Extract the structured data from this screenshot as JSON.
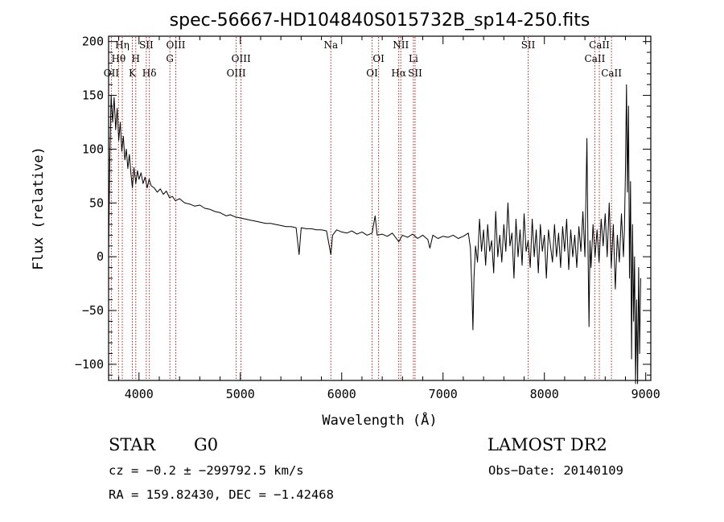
{
  "chart_data": {
    "type": "line",
    "title": "spec-56667-HD104840S015732B_sp14-250.fits",
    "xlabel": "Wavelength (Å)",
    "ylabel": "Flux (relative)",
    "xlim": [
      3700,
      9050
    ],
    "ylim": [
      -115,
      205
    ],
    "x_ticks": [
      {
        "value": 4000,
        "label": "4000"
      },
      {
        "value": 5000,
        "label": "5000"
      },
      {
        "value": 6000,
        "label": "6000"
      },
      {
        "value": 7000,
        "label": "7000"
      },
      {
        "value": 8000,
        "label": "8000"
      },
      {
        "value": 9000,
        "label": "9000"
      }
    ],
    "y_ticks": [
      {
        "value": 200,
        "label": "200"
      },
      {
        "value": 150,
        "label": "150"
      },
      {
        "value": 100,
        "label": "100"
      },
      {
        "value": 50,
        "label": "50"
      },
      {
        "value": 0,
        "label": "0"
      },
      {
        "value": -50,
        "label": "−50"
      },
      {
        "value": -100,
        "label": "−100"
      }
    ],
    "line_color": "#000000",
    "marker_color": "#b22222",
    "spectral_lines": [
      {
        "label": "Hη",
        "wavelength": 3835,
        "row": 0
      },
      {
        "label": "Hθ",
        "wavelength": 3798,
        "row": 1
      },
      {
        "label": "OII",
        "wavelength": 3727,
        "row": 2
      },
      {
        "label": "H",
        "wavelength": 3968,
        "row": 1
      },
      {
        "label": "K",
        "wavelength": 3934,
        "row": 2
      },
      {
        "label": "SII",
        "wavelength": 4072,
        "row": 0
      },
      {
        "label": "Hδ",
        "wavelength": 4102,
        "row": 2
      },
      {
        "label": "OIII",
        "wavelength": 4363,
        "row": 0
      },
      {
        "label": "G",
        "wavelength": 4305,
        "row": 1
      },
      {
        "label": "OIII",
        "wavelength": 5007,
        "row": 1
      },
      {
        "label": "OIII",
        "wavelength": 4959,
        "row": 2
      },
      {
        "label": "Na",
        "wavelength": 5893,
        "row": 0
      },
      {
        "label": "OI",
        "wavelength": 6364,
        "row": 1
      },
      {
        "label": "OI",
        "wavelength": 6300,
        "row": 2
      },
      {
        "label": "NII",
        "wavelength": 6583,
        "row": 0
      },
      {
        "label": "Li",
        "wavelength": 6708,
        "row": 1
      },
      {
        "label": "Hα",
        "wavelength": 6563,
        "row": 2
      },
      {
        "label": "SII",
        "wavelength": 6724,
        "row": 2
      },
      {
        "label": "SII",
        "wavelength": 7840,
        "row": 0
      },
      {
        "label": "CaII",
        "wavelength": 8542,
        "row": 0
      },
      {
        "label": "CaII",
        "wavelength": 8498,
        "row": 1
      },
      {
        "label": "CaII",
        "wavelength": 8662,
        "row": 2
      }
    ],
    "series": [
      {
        "name": "flux",
        "points": [
          [
            3700,
            5
          ],
          [
            3712,
            90
          ],
          [
            3725,
            150
          ],
          [
            3740,
            125
          ],
          [
            3755,
            148
          ],
          [
            3770,
            118
          ],
          [
            3785,
            138
          ],
          [
            3800,
            108
          ],
          [
            3815,
            125
          ],
          [
            3830,
            98
          ],
          [
            3845,
            112
          ],
          [
            3860,
            90
          ],
          [
            3875,
            100
          ],
          [
            3890,
            82
          ],
          [
            3905,
            95
          ],
          [
            3920,
            78
          ],
          [
            3935,
            64
          ],
          [
            3950,
            83
          ],
          [
            3968,
            68
          ],
          [
            3985,
            80
          ],
          [
            4000,
            72
          ],
          [
            4020,
            78
          ],
          [
            4040,
            68
          ],
          [
            4060,
            74
          ],
          [
            4080,
            64
          ],
          [
            4100,
            72
          ],
          [
            4120,
            66
          ],
          [
            4150,
            64
          ],
          [
            4180,
            60
          ],
          [
            4210,
            63
          ],
          [
            4240,
            58
          ],
          [
            4270,
            61
          ],
          [
            4300,
            55
          ],
          [
            4330,
            56
          ],
          [
            4360,
            52
          ],
          [
            4400,
            54
          ],
          [
            4450,
            50
          ],
          [
            4500,
            49
          ],
          [
            4550,
            47
          ],
          [
            4600,
            48
          ],
          [
            4650,
            45
          ],
          [
            4700,
            44
          ],
          [
            4750,
            42
          ],
          [
            4800,
            41
          ],
          [
            4861,
            38
          ],
          [
            4900,
            39
          ],
          [
            4950,
            37
          ],
          [
            5000,
            36
          ],
          [
            5050,
            35
          ],
          [
            5100,
            34
          ],
          [
            5150,
            33
          ],
          [
            5200,
            32
          ],
          [
            5250,
            31
          ],
          [
            5300,
            31
          ],
          [
            5350,
            30
          ],
          [
            5400,
            29
          ],
          [
            5450,
            28
          ],
          [
            5500,
            28
          ],
          [
            5550,
            27
          ],
          [
            5580,
            2
          ],
          [
            5600,
            27
          ],
          [
            5650,
            26
          ],
          [
            5700,
            26
          ],
          [
            5750,
            25
          ],
          [
            5800,
            25
          ],
          [
            5850,
            24
          ],
          [
            5893,
            2
          ],
          [
            5910,
            20
          ],
          [
            5950,
            25
          ],
          [
            6000,
            23
          ],
          [
            6050,
            22
          ],
          [
            6100,
            24
          ],
          [
            6150,
            21
          ],
          [
            6200,
            23
          ],
          [
            6250,
            20
          ],
          [
            6300,
            22
          ],
          [
            6330,
            38
          ],
          [
            6350,
            20
          ],
          [
            6400,
            21
          ],
          [
            6450,
            19
          ],
          [
            6500,
            22
          ],
          [
            6563,
            14
          ],
          [
            6600,
            20
          ],
          [
            6650,
            18
          ],
          [
            6700,
            21
          ],
          [
            6750,
            17
          ],
          [
            6800,
            20
          ],
          [
            6850,
            16
          ],
          [
            6870,
            8
          ],
          [
            6900,
            20
          ],
          [
            6950,
            17
          ],
          [
            7000,
            19
          ],
          [
            7050,
            18
          ],
          [
            7100,
            20
          ],
          [
            7150,
            17
          ],
          [
            7200,
            19
          ],
          [
            7250,
            22
          ],
          [
            7270,
            8
          ],
          [
            7285,
            -30
          ],
          [
            7295,
            -68
          ],
          [
            7305,
            -20
          ],
          [
            7320,
            10
          ],
          [
            7340,
            -5
          ],
          [
            7360,
            35
          ],
          [
            7380,
            5
          ],
          [
            7400,
            25
          ],
          [
            7420,
            -8
          ],
          [
            7440,
            30
          ],
          [
            7460,
            5
          ],
          [
            7480,
            15
          ],
          [
            7500,
            -15
          ],
          [
            7520,
            42
          ],
          [
            7540,
            0
          ],
          [
            7560,
            20
          ],
          [
            7580,
            -5
          ],
          [
            7600,
            30
          ],
          [
            7620,
            5
          ],
          [
            7640,
            50
          ],
          [
            7660,
            10
          ],
          [
            7680,
            22
          ],
          [
            7700,
            -20
          ],
          [
            7720,
            35
          ],
          [
            7740,
            0
          ],
          [
            7760,
            25
          ],
          [
            7780,
            -8
          ],
          [
            7800,
            40
          ],
          [
            7820,
            5
          ],
          [
            7840,
            15
          ],
          [
            7860,
            -10
          ],
          [
            7880,
            35
          ],
          [
            7900,
            0
          ],
          [
            7920,
            25
          ],
          [
            7940,
            -15
          ],
          [
            7960,
            30
          ],
          [
            7980,
            5
          ],
          [
            8000,
            20
          ],
          [
            8020,
            -20
          ],
          [
            8040,
            25
          ],
          [
            8060,
            10
          ],
          [
            8080,
            -5
          ],
          [
            8100,
            30
          ],
          [
            8120,
            0
          ],
          [
            8140,
            22
          ],
          [
            8160,
            -10
          ],
          [
            8180,
            28
          ],
          [
            8200,
            5
          ],
          [
            8220,
            35
          ],
          [
            8240,
            -12
          ],
          [
            8260,
            25
          ],
          [
            8280,
            0
          ],
          [
            8300,
            20
          ],
          [
            8320,
            -10
          ],
          [
            8340,
            28
          ],
          [
            8360,
            5
          ],
          [
            8380,
            42
          ],
          [
            8400,
            0
          ],
          [
            8420,
            110
          ],
          [
            8430,
            10
          ],
          [
            8440,
            -65
          ],
          [
            8450,
            15
          ],
          [
            8460,
            -10
          ],
          [
            8480,
            30
          ],
          [
            8500,
            0
          ],
          [
            8520,
            25
          ],
          [
            8540,
            -5
          ],
          [
            8560,
            35
          ],
          [
            8580,
            10
          ],
          [
            8600,
            40
          ],
          [
            8620,
            0
          ],
          [
            8640,
            50
          ],
          [
            8660,
            -10
          ],
          [
            8680,
            30
          ],
          [
            8700,
            -30
          ],
          [
            8720,
            20
          ],
          [
            8740,
            -5
          ],
          [
            8760,
            40
          ],
          [
            8780,
            0
          ],
          [
            8790,
            25
          ],
          [
            8800,
            80
          ],
          [
            8810,
            160
          ],
          [
            8820,
            60
          ],
          [
            8830,
            140
          ],
          [
            8840,
            -20
          ],
          [
            8850,
            70
          ],
          [
            8860,
            -95
          ],
          [
            8870,
            30
          ],
          [
            8880,
            -60
          ],
          [
            8890,
            0
          ],
          [
            8900,
            -118
          ],
          [
            8910,
            -40
          ],
          [
            8920,
            -118
          ],
          [
            8930,
            -10
          ],
          [
            8940,
            -90
          ],
          [
            8950,
            -20
          ]
        ]
      }
    ]
  },
  "info": {
    "object_class": "STAR",
    "subclass": "G0",
    "survey": "LAMOST DR2",
    "redshift_text": "cz = −0.2 ± −299792.5 km/s",
    "obs_date": "Obs−Date: 20140109",
    "coordinates": "RA = 159.82430, DEC =  −1.42468"
  }
}
